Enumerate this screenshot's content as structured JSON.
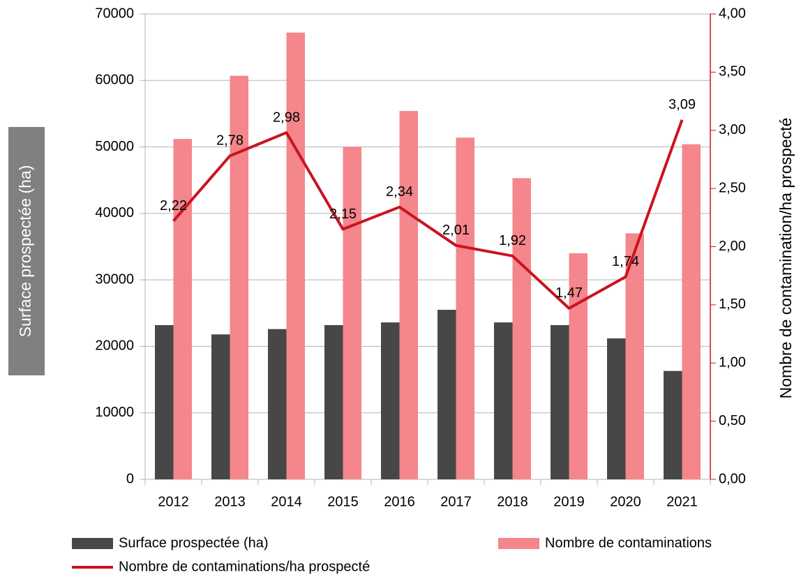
{
  "chart_data": {
    "type": "bar_line",
    "ylabel": "Surface prospectée (ha)",
    "y2label": "Nombre de contamination/ha prospecté",
    "categories": [
      "2012",
      "2013",
      "2014",
      "2015",
      "2016",
      "2017",
      "2018",
      "2019",
      "2020",
      "2021"
    ],
    "series": [
      {
        "name": "Surface prospectée (ha)",
        "type": "bar",
        "color": "#474747",
        "values": [
          23200,
          21800,
          22600,
          23200,
          23600,
          25500,
          23600,
          23200,
          21200,
          16300
        ]
      },
      {
        "name": "Nombre de contaminations",
        "type": "bar",
        "color": "#f4868c",
        "values": [
          51200,
          60700,
          67200,
          50000,
          55400,
          51400,
          45300,
          34000,
          37000,
          50400
        ]
      },
      {
        "name": "Nombre de contaminations/ha prospecté",
        "type": "line",
        "axis": "y2",
        "color": "#c9141e",
        "values": [
          2.22,
          2.78,
          2.98,
          2.15,
          2.34,
          2.01,
          1.92,
          1.47,
          1.74,
          3.09
        ],
        "value_labels": [
          "2,22",
          "2,78",
          "2,98",
          "2,15",
          "2,34",
          "2,01",
          "1,92",
          "1,47",
          "1,74",
          "3,09"
        ]
      }
    ],
    "ylim": [
      0,
      70000
    ],
    "yticks": [
      0,
      10000,
      20000,
      30000,
      40000,
      50000,
      60000,
      70000
    ],
    "y2lim": [
      0,
      4
    ],
    "y2ticks": [
      {
        "value": 0,
        "label": "0,00"
      },
      {
        "value": 0.5,
        "label": "0,50"
      },
      {
        "value": 1,
        "label": "1,00"
      },
      {
        "value": 1.5,
        "label": "1,50"
      },
      {
        "value": 2,
        "label": "2,00"
      },
      {
        "value": 2.5,
        "label": "2,50"
      },
      {
        "value": 3,
        "label": "3,00"
      },
      {
        "value": 3.5,
        "label": "3,50"
      },
      {
        "value": 4,
        "label": "4,00"
      }
    ],
    "grid": true
  }
}
